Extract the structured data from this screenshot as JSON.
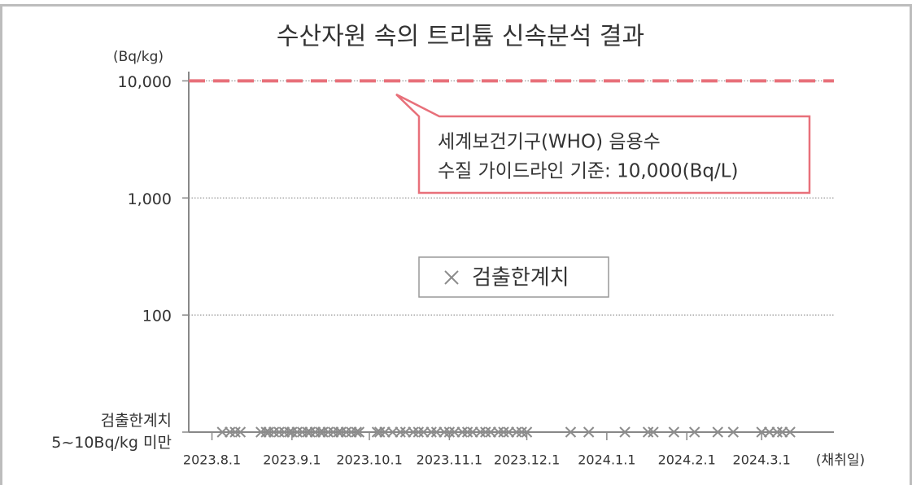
{
  "chart_data": {
    "type": "scatter",
    "title": "수산자원 속의 트리튬 신속분석 결과",
    "y_unit": "(Bq/kg)",
    "xlabel": "(채취일)",
    "log_y": true,
    "grid": true,
    "ylim": [
      10,
      12000
    ],
    "yticks": [
      {
        "value": 10000,
        "label": "10,000"
      },
      {
        "value": 1000,
        "label": "1,000"
      },
      100,
      {
        "value": 10,
        "label": [
          "검출한계치",
          "5~10Bq/kg 미만"
        ]
      }
    ],
    "xlim": [
      "2023-07-23",
      "2024-03-29"
    ],
    "xticks": [
      {
        "value": "2023-08-01",
        "label": "2023.8.1"
      },
      {
        "value": "2023-09-01",
        "label": "2023.9.1"
      },
      {
        "value": "2023-10-01",
        "label": "2023.10.1"
      },
      {
        "value": "2023-11-01",
        "label": "2023.11.1"
      },
      {
        "value": "2023-12-01",
        "label": "2023.12.1"
      },
      {
        "value": "2024-01-01",
        "label": "2024.1.1"
      },
      {
        "value": "2024-02-01",
        "label": "2024.2.1"
      },
      {
        "value": "2024-03-01",
        "label": "2024.3.1"
      }
    ],
    "reference_line": {
      "value": 10000,
      "color": "#e8707a"
    },
    "annotation": [
      "세계보건기구(WHO) 음용수",
      "수질 가이드라인 기준: 10,000(Bq/L)"
    ],
    "series": [
      {
        "name": "검출한계치",
        "color": "#8c8c8c",
        "x": [
          "2023-08-05",
          "2023-08-08",
          "2023-08-10",
          "2023-08-12",
          "2023-08-20",
          "2023-08-22",
          "2023-08-23",
          "2023-08-25",
          "2023-08-27",
          "2023-08-29",
          "2023-08-31",
          "2023-09-01",
          "2023-09-03",
          "2023-09-05",
          "2023-09-07",
          "2023-09-08",
          "2023-09-10",
          "2023-09-12",
          "2023-09-13",
          "2023-09-15",
          "2023-09-17",
          "2023-09-19",
          "2023-09-20",
          "2023-09-22",
          "2023-09-24",
          "2023-09-26",
          "2023-09-27",
          "2023-10-04",
          "2023-10-05",
          "2023-10-07",
          "2023-10-10",
          "2023-10-13",
          "2023-10-15",
          "2023-10-18",
          "2023-10-20",
          "2023-10-22",
          "2023-10-25",
          "2023-10-27",
          "2023-10-30",
          "2023-11-01",
          "2023-11-03",
          "2023-11-06",
          "2023-11-08",
          "2023-11-10",
          "2023-11-13",
          "2023-11-15",
          "2023-11-17",
          "2023-11-20",
          "2023-11-22",
          "2023-11-24",
          "2023-11-27",
          "2023-11-29",
          "2023-12-01",
          "2023-12-18",
          "2023-12-25",
          "2024-01-08",
          "2024-01-17",
          "2024-01-19",
          "2024-01-27",
          "2024-02-04",
          "2024-02-13",
          "2024-02-19",
          "2024-03-01",
          "2024-03-04",
          "2024-03-07",
          "2024-03-09",
          "2024-03-12"
        ],
        "values": [
          10,
          10,
          10,
          10,
          10,
          10,
          10,
          10,
          10,
          10,
          10,
          10,
          10,
          10,
          10,
          10,
          10,
          10,
          10,
          10,
          10,
          10,
          10,
          10,
          10,
          10,
          10,
          10,
          10,
          10,
          10,
          10,
          10,
          10,
          10,
          10,
          10,
          10,
          10,
          10,
          10,
          10,
          10,
          10,
          10,
          10,
          10,
          10,
          10,
          10,
          10,
          10,
          10,
          10,
          10,
          10,
          10,
          10,
          10,
          10,
          10,
          10,
          10,
          10,
          10,
          10,
          10
        ]
      }
    ]
  }
}
